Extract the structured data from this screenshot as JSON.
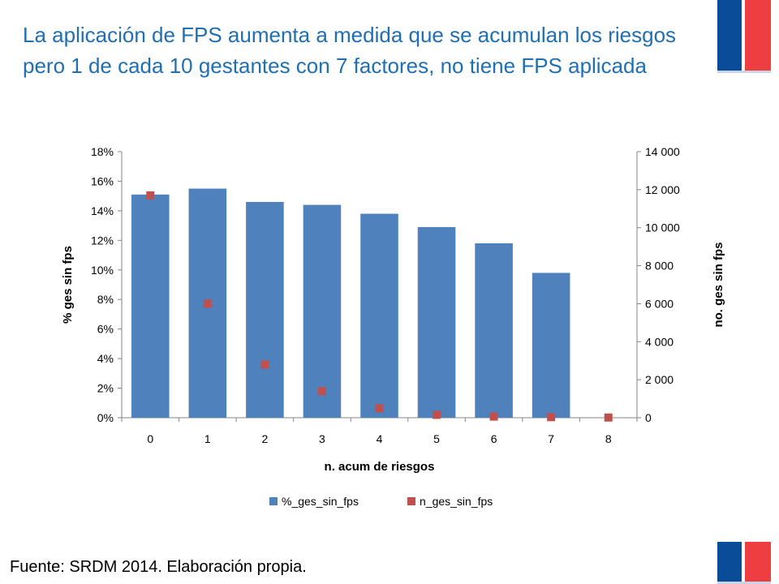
{
  "title": "La aplicación de FPS aumenta a medida que se acumulan los riesgos pero 1 de cada 10 gestantes con  7 factores, no tiene FPS aplicada",
  "source": "Fuente: SRDM 2014. Elaboración propia.",
  "colors": {
    "title": "#1f6fb4",
    "bar": "#4f81bd",
    "marker": "#c0504d",
    "flag_blue": "#0a4c97",
    "flag_red": "#ef3e42"
  },
  "chart_data": {
    "type": "bar",
    "categories": [
      "0",
      "1",
      "2",
      "3",
      "4",
      "5",
      "6",
      "7",
      "8"
    ],
    "xlabel": "n. acum de riesgos",
    "ylabel": "% ges sin fps",
    "y2label": "no. ges sin fps",
    "ylim": [
      0,
      18
    ],
    "y2lim": [
      0,
      14000
    ],
    "y_ticks": [
      "0%",
      "2%",
      "4%",
      "6%",
      "8%",
      "10%",
      "12%",
      "14%",
      "16%",
      "18%"
    ],
    "y2_ticks": [
      "0",
      "2 000",
      "4 000",
      "6 000",
      "8 000",
      "10 000",
      "12 000",
      "14 000"
    ],
    "grid": false,
    "legend_position": "bottom",
    "series": [
      {
        "name": "%_ges_sin_fps",
        "type": "bar",
        "axis": "left",
        "values": [
          15.1,
          15.5,
          14.6,
          14.4,
          13.8,
          12.9,
          11.8,
          9.8,
          null
        ]
      },
      {
        "name": "n_ges_sin_fps",
        "type": "scatter",
        "axis": "right",
        "values": [
          11700,
          6000,
          2800,
          1400,
          500,
          150,
          60,
          30,
          10
        ]
      }
    ]
  }
}
